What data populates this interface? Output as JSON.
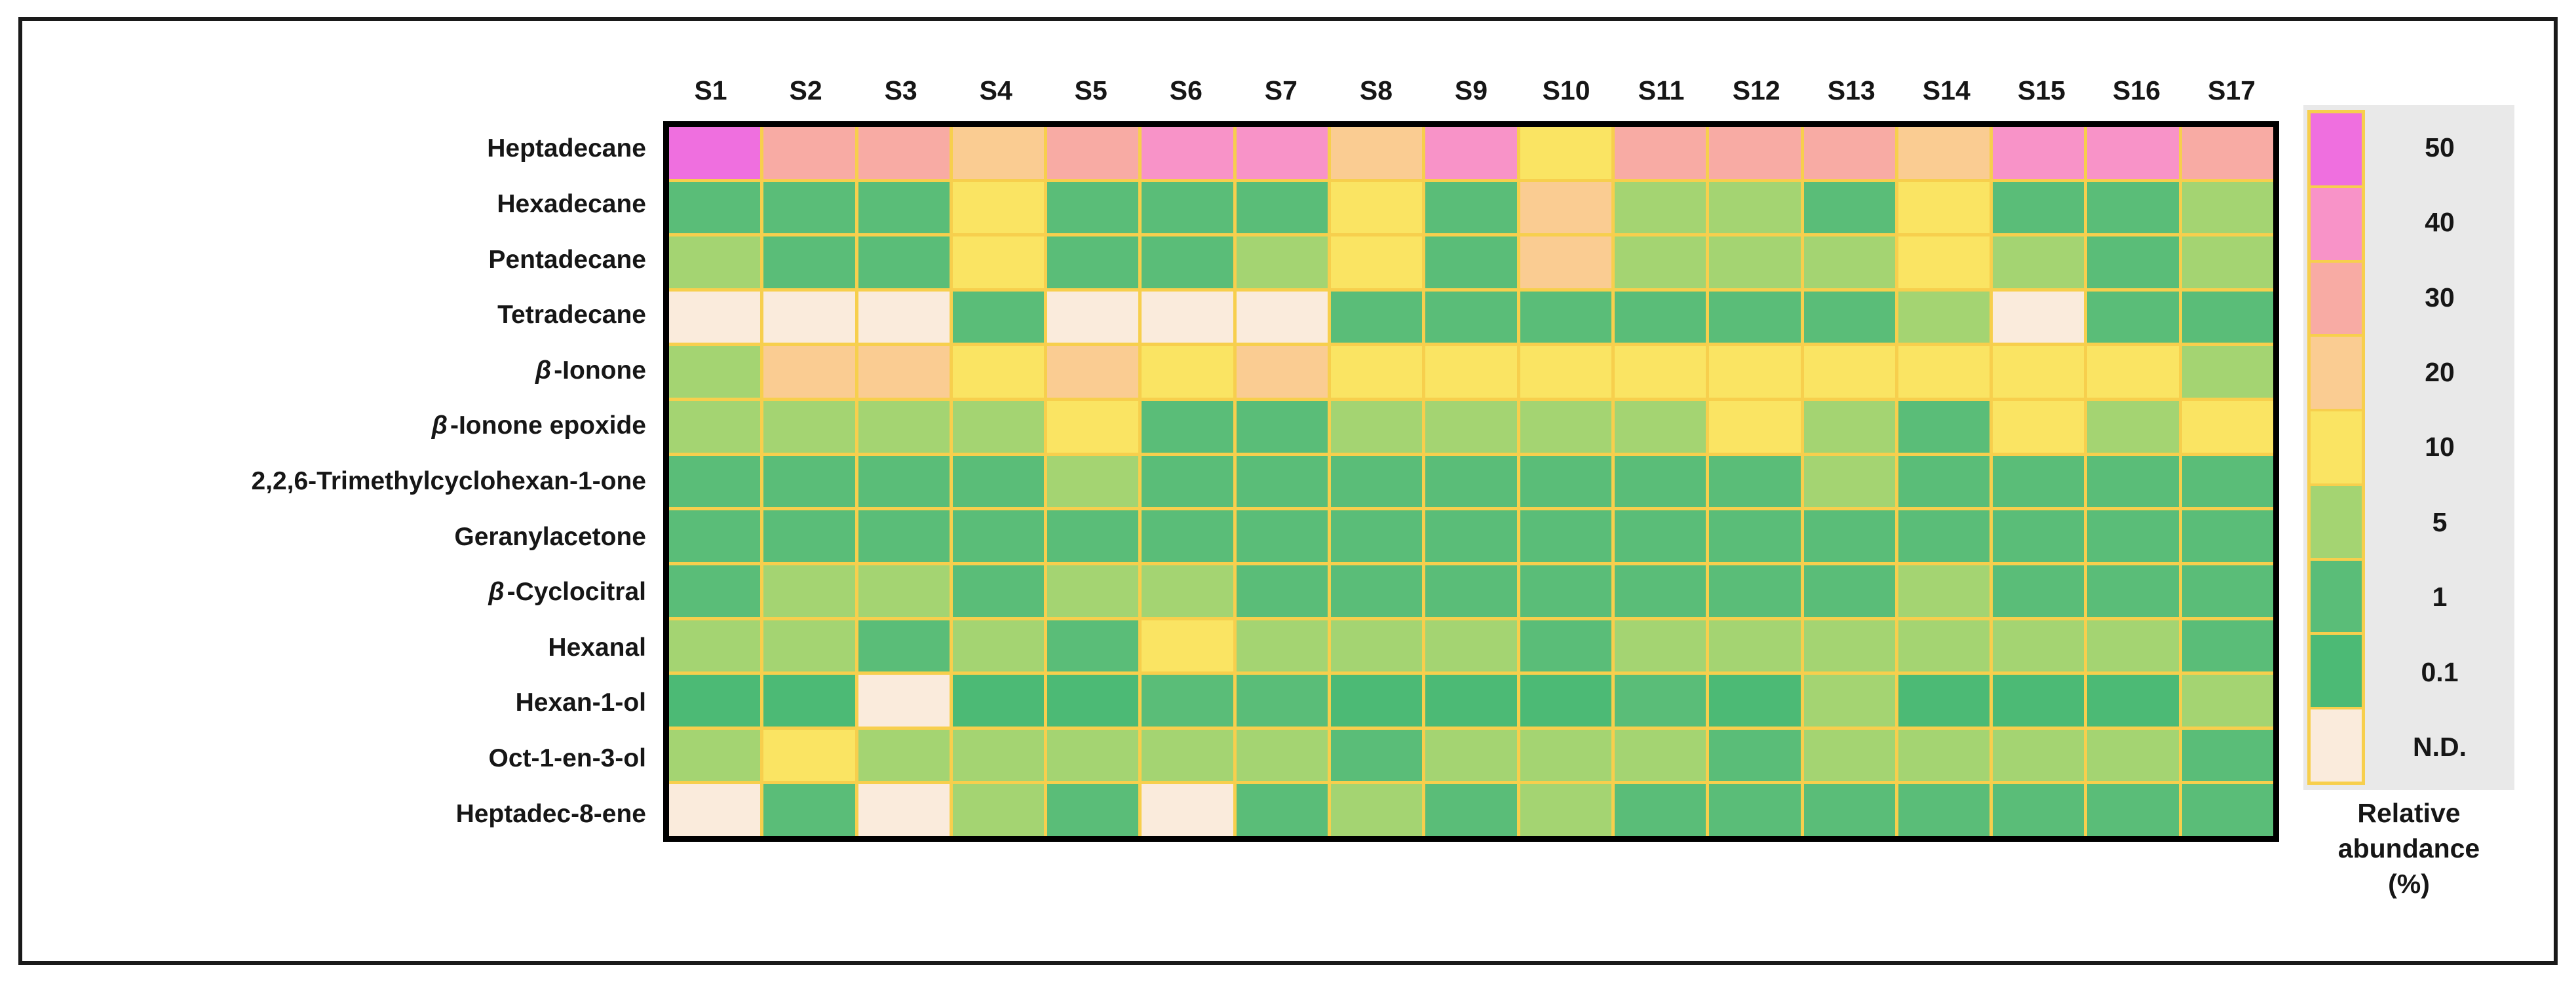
{
  "figure": {
    "background": "#ffffff",
    "frame_color": "#1a1a1a",
    "gridline_color": "#f7cf4d"
  },
  "chart_data": {
    "type": "heatmap",
    "title": "",
    "x_categories": [
      "S1",
      "S2",
      "S3",
      "S4",
      "S5",
      "S6",
      "S7",
      "S8",
      "S9",
      "S10",
      "S11",
      "S12",
      "S13",
      "S14",
      "S15",
      "S16",
      "S17"
    ],
    "y_categories": [
      "Heptadecane",
      "Hexadecane",
      "Pentadecane",
      "Tetradecane",
      "β-Ionone",
      "β-Ionone epoxide",
      "2,2,6-Trimethylcyclohexan-1-one",
      "Geranylacetone",
      "β-Cyclocitral",
      "Hexanal",
      "Hexan-1-ol",
      "Oct-1-en-3-ol",
      "Heptadec-8-ene"
    ],
    "values": [
      [
        "50",
        "30",
        "30",
        "20",
        "30",
        "40",
        "40",
        "20",
        "40",
        "10",
        "30",
        "30",
        "30",
        "20",
        "40",
        "40",
        "30"
      ],
      [
        "1",
        "1",
        "1",
        "10",
        "1",
        "1",
        "1",
        "10",
        "1",
        "20",
        "5",
        "5",
        "1",
        "10",
        "1",
        "1",
        "5"
      ],
      [
        "5",
        "1",
        "1",
        "10",
        "1",
        "1",
        "5",
        "10",
        "1",
        "20",
        "5",
        "5",
        "5",
        "10",
        "5",
        "1",
        "5"
      ],
      [
        "N.D.",
        "N.D.",
        "N.D.",
        "1",
        "N.D.",
        "N.D.",
        "N.D.",
        "1",
        "1",
        "1",
        "1",
        "1",
        "1",
        "5",
        "N.D.",
        "1",
        "1"
      ],
      [
        "5",
        "20",
        "20",
        "10",
        "20",
        "10",
        "20",
        "10",
        "10",
        "10",
        "10",
        "10",
        "10",
        "10",
        "10",
        "10",
        "5"
      ],
      [
        "5",
        "5",
        "5",
        "5",
        "10",
        "1",
        "1",
        "5",
        "5",
        "5",
        "5",
        "10",
        "5",
        "1",
        "10",
        "5",
        "10"
      ],
      [
        "1",
        "1",
        "1",
        "1",
        "5",
        "1",
        "1",
        "1",
        "1",
        "1",
        "1",
        "1",
        "5",
        "1",
        "1",
        "1",
        "1"
      ],
      [
        "1",
        "1",
        "1",
        "1",
        "1",
        "1",
        "1",
        "1",
        "1",
        "1",
        "1",
        "1",
        "1",
        "1",
        "1",
        "1",
        "1"
      ],
      [
        "1",
        "5",
        "5",
        "1",
        "5",
        "5",
        "1",
        "1",
        "1",
        "1",
        "1",
        "1",
        "1",
        "5",
        "1",
        "1",
        "1"
      ],
      [
        "5",
        "5",
        "1",
        "5",
        "1",
        "10",
        "5",
        "5",
        "5",
        "1",
        "5",
        "5",
        "5",
        "5",
        "5",
        "5",
        "1"
      ],
      [
        "0.1",
        "0.1",
        "N.D.",
        "0.1",
        "0.1",
        "1",
        "1",
        "0.1",
        "0.1",
        "0.1",
        "1",
        "0.1",
        "5",
        "0.1",
        "0.1",
        "0.1",
        "5"
      ],
      [
        "5",
        "10",
        "5",
        "5",
        "5",
        "5",
        "5",
        "1",
        "5",
        "5",
        "5",
        "1",
        "5",
        "5",
        "5",
        "5",
        "1"
      ],
      [
        "N.D.",
        "1",
        "N.D.",
        "5",
        "1",
        "N.D.",
        "1",
        "5",
        "1",
        "5",
        "1",
        "1",
        "1",
        "1",
        "1",
        "1",
        "1"
      ]
    ],
    "palette": {
      "50": "#ef6fdf",
      "40": "#f893c8",
      "30": "#f8aba4",
      "20": "#facc92",
      "10": "#fae463",
      "5": "#a4d472",
      "1": "#5abd78",
      "0.1": "#4cba75",
      "N.D.": "#faebdc"
    },
    "legend": {
      "labels": [
        "50",
        "40",
        "30",
        "20",
        "10",
        "5",
        "1",
        "0.1",
        "N.D."
      ],
      "title": "Relative\nabundance\n(%)",
      "position": "right",
      "background": "#e9e9e9"
    },
    "layout": {
      "grid": "gold gridlines between cells",
      "plot_border": "black",
      "x_axis_label": "",
      "y_axis_label": ""
    }
  }
}
